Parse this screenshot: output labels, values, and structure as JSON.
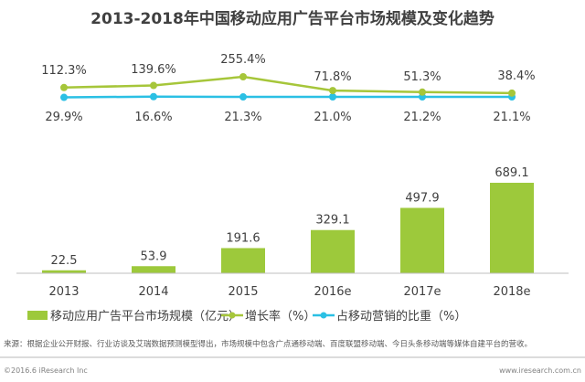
{
  "chart_data": {
    "type": "bar",
    "title": "2013-2018年中国移动应用广告平台市场规模及变化趋势",
    "categories": [
      "2013",
      "2014",
      "2015",
      "2016e",
      "2017e",
      "2018e"
    ],
    "series": [
      {
        "name": "移动应用广告平台市场规模（亿元）",
        "type": "bar",
        "color": "#9dc93b",
        "values": [
          22.5,
          53.9,
          191.6,
          329.1,
          497.9,
          689.1
        ],
        "labels": [
          "22.5",
          "53.9",
          "191.6",
          "329.1",
          "497.9",
          "689.1"
        ]
      },
      {
        "name": "增长率（%）",
        "type": "line",
        "color": "#a6c63a",
        "values": [
          112.3,
          139.6,
          255.4,
          71.8,
          51.3,
          38.4
        ],
        "labels": [
          "112.3%",
          "139.6%",
          "255.4%",
          "71.8%",
          "51.3%",
          "38.4%"
        ]
      },
      {
        "name": "占移动营销的比重（%）",
        "type": "line",
        "color": "#2bc0e4",
        "values": [
          29.9,
          16.6,
          21.3,
          21.0,
          21.2,
          21.1
        ],
        "labels": [
          "29.9%",
          "16.6%",
          "21.3%",
          "21.0%",
          "21.2%",
          "21.1%"
        ]
      }
    ],
    "legend": "bottom",
    "grid": false
  },
  "footer": {
    "source": "来源：根据企业公开财报、行业访谈及艾瑞数据预测模型得出，市场规模中包含广点通移动端、百度联盟移动端、今日头条移动端等媒体自建平台的营收。",
    "copyright": "©2016.6 iResearch Inc",
    "website": "www.iresearch.com.cn"
  }
}
